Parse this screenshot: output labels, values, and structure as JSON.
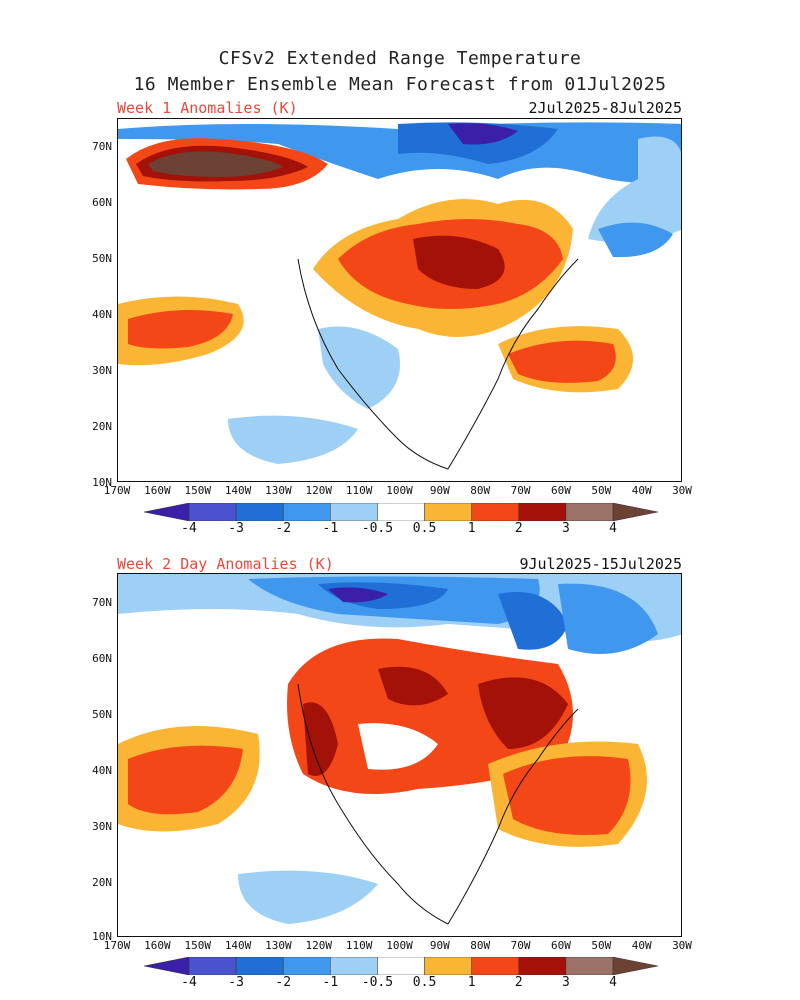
{
  "header": {
    "title_line1": "CFSv2 Extended Range Temperature",
    "title_line2": "16 Member Ensemble Mean Forecast from 01Jul2025"
  },
  "panels": [
    {
      "label": "Week 1 Anomalies (K)",
      "dates": "2Jul2025-8Jul2025"
    },
    {
      "label": "Week 2 Day Anomalies (K)",
      "dates": "9Jul2025-15Jul2025"
    }
  ],
  "axes": {
    "lat_labels": [
      "70N",
      "60N",
      "50N",
      "40N",
      "30N",
      "20N",
      "10N"
    ],
    "lon_labels": [
      "170W",
      "160W",
      "150W",
      "140W",
      "130W",
      "120W",
      "110W",
      "100W",
      "90W",
      "80W",
      "70W",
      "60W",
      "50W",
      "40W",
      "30W"
    ]
  },
  "colorbar": {
    "labels": [
      "-4",
      "-3",
      "-2",
      "-1",
      "-0.5",
      "0.5",
      "1",
      "2",
      "3",
      "4"
    ],
    "colors": [
      "#3a1fa8",
      "#4a52cf",
      "#1f6fd6",
      "#3f97ee",
      "#9ecff5",
      "#ffffff",
      "#fbb535",
      "#f44718",
      "#a31108",
      "#9a7268",
      "#6b4233"
    ]
  }
}
